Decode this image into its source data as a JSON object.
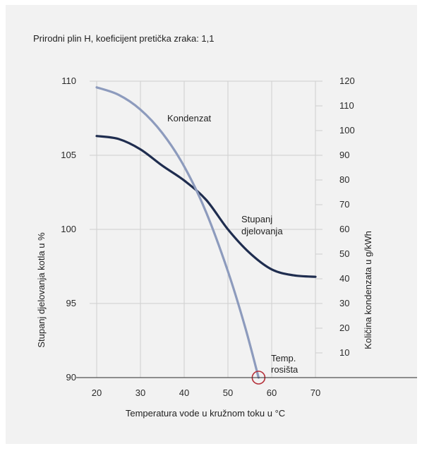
{
  "colors": {
    "background": "#f2f2f2",
    "efficiency_line": "#1f2d4f",
    "condensate_line": "#8d9bbd",
    "dew_point_marker": "#b5303a",
    "grid": "#cfcfcf"
  },
  "chart_data": {
    "type": "line",
    "title": "Prirodni plin H, koeficijent pretička zraka: 1,1",
    "xlabel": "Temperatura vode u kružnom toku u °C",
    "ylabel_left": "Stupanj djelovanja kotla u %",
    "ylabel_right": "Količina kondenzata u g/kWh",
    "x_ticks": [
      "20",
      "30",
      "40",
      "50",
      "60",
      "70"
    ],
    "y_left_ticks": [
      "110",
      "105",
      "100",
      "95",
      "90"
    ],
    "y_right_ticks": [
      "120",
      "110",
      "100",
      "90",
      "80",
      "70",
      "60",
      "50",
      "40",
      "30",
      "20",
      "10"
    ],
    "xlim": [
      20,
      70
    ],
    "ylim_left": [
      90,
      110
    ],
    "ylim_right": [
      0,
      120
    ],
    "grid": true,
    "series": [
      {
        "name": "Stupanj djelovanja",
        "axis": "left",
        "x": [
          20,
          25,
          30,
          35,
          40,
          45,
          50,
          55,
          60,
          65,
          70
        ],
        "y": [
          106.3,
          106.1,
          105.4,
          104.3,
          103.3,
          102.0,
          100.0,
          98.4,
          97.3,
          96.9,
          96.8
        ]
      },
      {
        "name": "Kondenzat",
        "axis": "right",
        "x": [
          20,
          25,
          30,
          35,
          40,
          45,
          50,
          54,
          57
        ],
        "y": [
          117.5,
          114.5,
          108.5,
          99.0,
          85.5,
          67.0,
          43.0,
          20.0,
          0.0
        ]
      }
    ],
    "annotations": [
      {
        "text": "Kondenzat"
      },
      {
        "text": "Stupanj"
      },
      {
        "text": "djelovanja"
      },
      {
        "text": "Temp."
      },
      {
        "text": "rosišta"
      }
    ]
  }
}
